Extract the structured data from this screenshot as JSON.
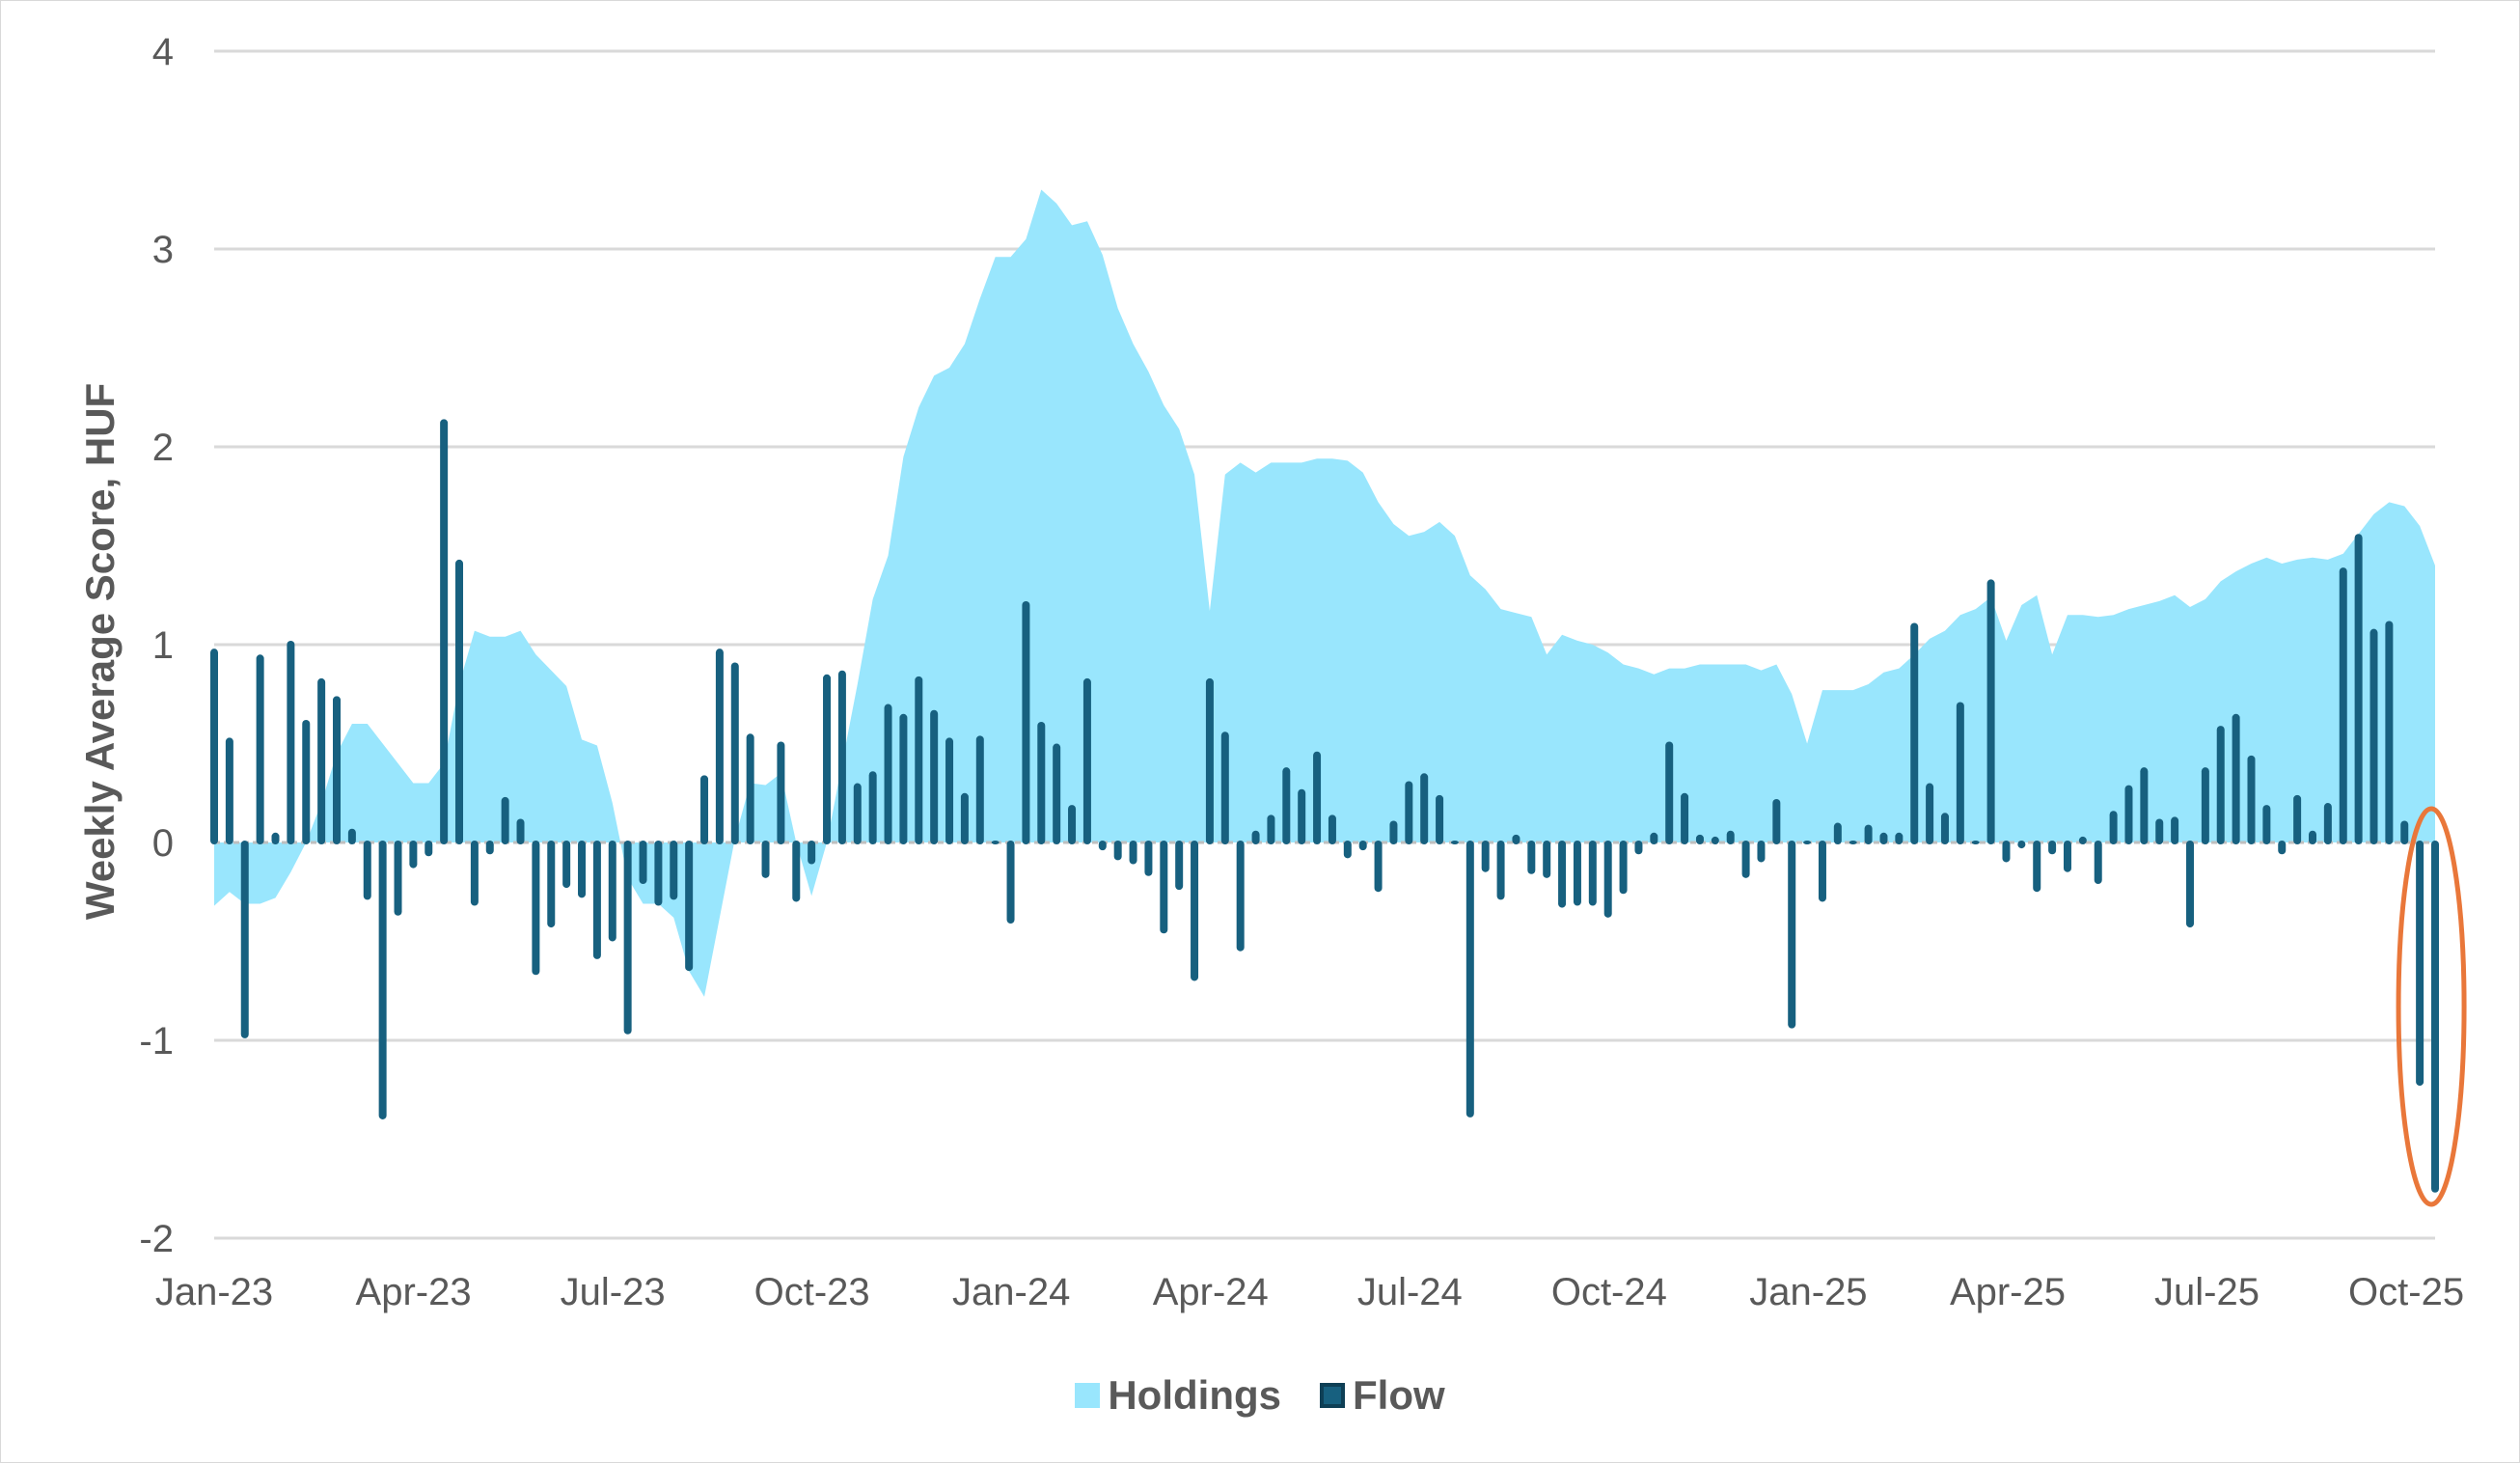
{
  "chart_data": {
    "type": "bar+area",
    "ylabel": "Weekly Average Score, HUF",
    "xlabel": "",
    "ylim": [
      -2,
      4
    ],
    "yticks": [
      "-2",
      "-1",
      "0",
      "1",
      "2",
      "3",
      "4"
    ],
    "xticks": [
      "Jan-23",
      "Apr-23",
      "Jul-23",
      "Oct-23",
      "Jan-24",
      "Apr-24",
      "Jul-24",
      "Oct-24",
      "Jan-25",
      "Apr-25",
      "Jul-25",
      "Oct-25"
    ],
    "grid": true,
    "legend_position": "bottom",
    "frequency": "weekly",
    "annotation": {
      "shape": "ellipse",
      "target": "last two Flow bars",
      "color": "#E9773A"
    },
    "series": [
      {
        "name": "Holdings",
        "type": "area",
        "color": "#99E6FD",
        "values": [
          -0.32,
          -0.25,
          -0.31,
          -0.31,
          -0.28,
          -0.15,
          0.0,
          0.2,
          0.45,
          0.6,
          0.6,
          0.5,
          0.4,
          0.3,
          0.3,
          0.4,
          0.8,
          1.07,
          1.04,
          1.04,
          1.07,
          0.95,
          0.87,
          0.79,
          0.52,
          0.49,
          0.2,
          -0.18,
          -0.31,
          -0.31,
          -0.38,
          -0.65,
          -0.78,
          -0.38,
          0.02,
          0.3,
          0.29,
          0.35,
          0.0,
          -0.27,
          0.0,
          0.4,
          0.8,
          1.23,
          1.45,
          1.95,
          2.2,
          2.36,
          2.4,
          2.52,
          2.75,
          2.96,
          2.96,
          3.05,
          3.3,
          3.23,
          3.12,
          3.14,
          2.97,
          2.7,
          2.52,
          2.38,
          2.21,
          2.09,
          1.86,
          1.17,
          1.86,
          1.92,
          1.87,
          1.92,
          1.92,
          1.92,
          1.94,
          1.94,
          1.93,
          1.87,
          1.72,
          1.61,
          1.55,
          1.57,
          1.62,
          1.55,
          1.35,
          1.28,
          1.18,
          1.16,
          1.14,
          0.95,
          1.05,
          1.02,
          1.0,
          0.96,
          0.9,
          0.88,
          0.85,
          0.88,
          0.88,
          0.9,
          0.9,
          0.9,
          0.9,
          0.87,
          0.9,
          0.75,
          0.5,
          0.77,
          0.77,
          0.77,
          0.8,
          0.86,
          0.88,
          0.95,
          1.03,
          1.07,
          1.15,
          1.18,
          1.24,
          1.02,
          1.2,
          1.25,
          0.95,
          1.15,
          1.15,
          1.14,
          1.15,
          1.18,
          1.2,
          1.22,
          1.25,
          1.19,
          1.23,
          1.32,
          1.37,
          1.41,
          1.44,
          1.41,
          1.43,
          1.44,
          1.43,
          1.46,
          1.56,
          1.66,
          1.72,
          1.7,
          1.6,
          1.4
        ]
      },
      {
        "name": "Flow",
        "type": "bar",
        "color": "#17607F",
        "values": [
          0.97,
          0.52,
          -0.98,
          0.94,
          0.04,
          1.01,
          0.61,
          0.82,
          0.73,
          0.06,
          -0.28,
          -1.39,
          -0.36,
          -0.12,
          -0.06,
          2.13,
          1.42,
          -0.31,
          -0.05,
          0.22,
          0.11,
          -0.66,
          -0.42,
          -0.22,
          -0.27,
          -0.58,
          -0.49,
          -0.96,
          -0.2,
          -0.31,
          -0.28,
          -0.64,
          0.33,
          0.97,
          0.9,
          0.54,
          -0.17,
          0.5,
          -0.29,
          -0.1,
          0.84,
          0.86,
          0.29,
          0.35,
          0.69,
          0.64,
          0.83,
          0.66,
          0.52,
          0.24,
          0.53,
          0.0,
          -0.4,
          1.21,
          0.6,
          0.49,
          0.18,
          0.82,
          -0.03,
          -0.08,
          -0.1,
          -0.16,
          -0.45,
          -0.23,
          -0.69,
          0.82,
          0.55,
          -0.54,
          0.05,
          0.13,
          0.37,
          0.26,
          0.45,
          0.13,
          -0.07,
          -0.03,
          -0.24,
          0.1,
          0.3,
          0.34,
          0.23,
          0.0,
          -1.38,
          -0.14,
          -0.28,
          0.03,
          -0.15,
          -0.17,
          -0.32,
          -0.31,
          -0.31,
          -0.37,
          -0.25,
          -0.05,
          0.04,
          0.5,
          0.24,
          0.03,
          0.02,
          0.05,
          -0.17,
          -0.09,
          0.21,
          -0.93,
          0.0,
          -0.29,
          0.09,
          0.0,
          0.08,
          0.04,
          0.04,
          1.1,
          0.29,
          0.14,
          0.7,
          0.0,
          1.32,
          -0.09,
          -0.02,
          -0.24,
          -0.05,
          -0.14,
          0.02,
          -0.2,
          0.15,
          0.28,
          0.37,
          0.11,
          0.12,
          -0.42,
          0.37,
          0.58,
          0.64,
          0.43,
          0.18,
          -0.05,
          0.23,
          0.05,
          0.19,
          1.38,
          1.55,
          1.07,
          1.11,
          0.1,
          -1.22,
          -1.76
        ]
      }
    ]
  }
}
